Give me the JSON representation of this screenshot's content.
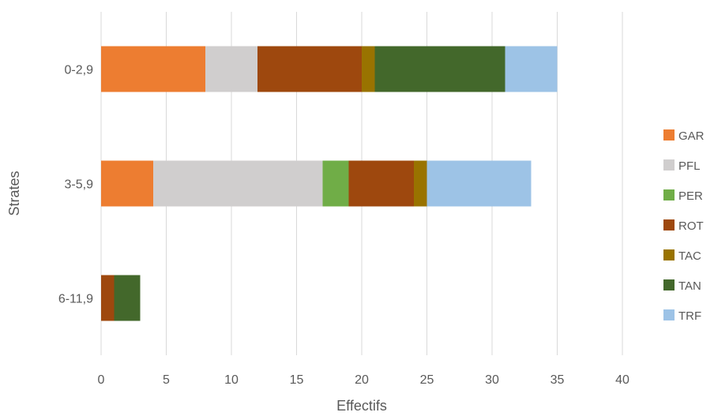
{
  "chart_data": {
    "type": "bar",
    "orientation": "horizontal",
    "stacked": true,
    "title": "",
    "xlabel": "Effectifs",
    "ylabel": "Strates",
    "xlim": [
      0,
      40
    ],
    "x_ticks": [
      0,
      5,
      10,
      15,
      20,
      25,
      30,
      35,
      40
    ],
    "categories": [
      "0-2,9",
      "3-5,9",
      "6-11,9"
    ],
    "series": [
      {
        "name": "GAR",
        "color": "#ed7d31",
        "values": [
          8,
          4,
          0
        ]
      },
      {
        "name": "PFL",
        "color": "#d0cece",
        "values": [
          4,
          13,
          0
        ]
      },
      {
        "name": "PER",
        "color": "#70ad47",
        "values": [
          0,
          2,
          0
        ]
      },
      {
        "name": "ROT",
        "color": "#9e480e",
        "values": [
          8,
          5,
          1
        ]
      },
      {
        "name": "TAC",
        "color": "#997300",
        "values": [
          1,
          1,
          0
        ]
      },
      {
        "name": "TAN",
        "color": "#43682b",
        "values": [
          10,
          0,
          2
        ]
      },
      {
        "name": "TRF",
        "color": "#9dc3e6",
        "values": [
          4,
          8,
          0
        ]
      }
    ],
    "grid": true,
    "legend_position": "right"
  }
}
